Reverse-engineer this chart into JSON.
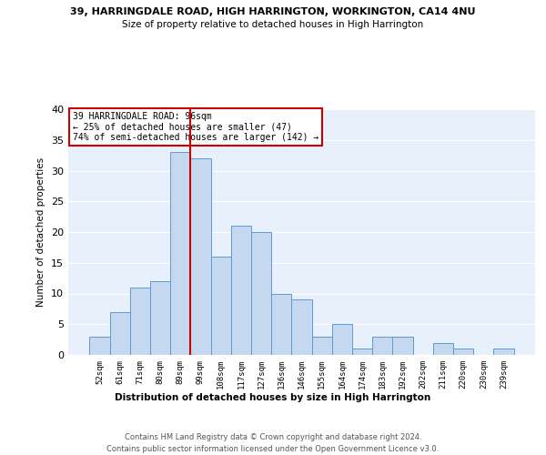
{
  "title1": "39, HARRINGDALE ROAD, HIGH HARRINGTON, WORKINGTON, CA14 4NU",
  "title2": "Size of property relative to detached houses in High Harrington",
  "xlabel": "Distribution of detached houses by size in High Harrington",
  "ylabel": "Number of detached properties",
  "bar_labels": [
    "52sqm",
    "61sqm",
    "71sqm",
    "80sqm",
    "89sqm",
    "99sqm",
    "108sqm",
    "117sqm",
    "127sqm",
    "136sqm",
    "146sqm",
    "155sqm",
    "164sqm",
    "174sqm",
    "183sqm",
    "192sqm",
    "202sqm",
    "211sqm",
    "220sqm",
    "230sqm",
    "239sqm"
  ],
  "bar_heights": [
    3,
    7,
    11,
    12,
    33,
    32,
    16,
    21,
    20,
    10,
    9,
    3,
    5,
    1,
    3,
    3,
    0,
    2,
    1,
    0,
    1
  ],
  "bar_color": "#c5d8f0",
  "bar_edge_color": "#5b9bd5",
  "vline_x": 4.5,
  "vline_color": "#cc0000",
  "annotation_line1": "39 HARRINGDALE ROAD: 96sqm",
  "annotation_line2": "← 25% of detached houses are smaller (47)",
  "annotation_line3": "74% of semi-detached houses are larger (142) →",
  "box_edge_color": "#cc0000",
  "ylim": [
    0,
    40
  ],
  "yticks": [
    0,
    5,
    10,
    15,
    20,
    25,
    30,
    35,
    40
  ],
  "footer1": "Contains HM Land Registry data © Crown copyright and database right 2024.",
  "footer2": "Contains public sector information licensed under the Open Government Licence v3.0.",
  "plot_bg_color": "#e8f0fb",
  "grid_color": "white"
}
